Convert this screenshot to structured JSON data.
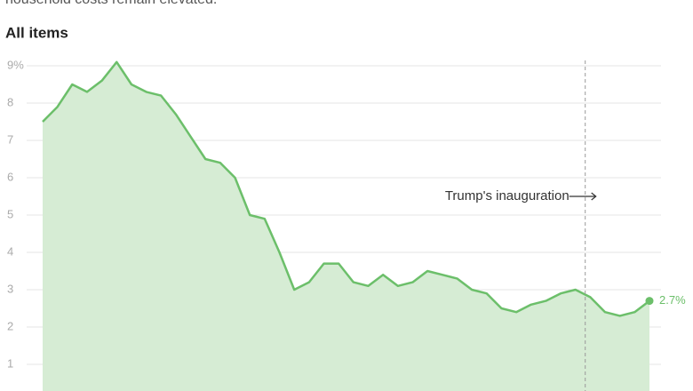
{
  "chart_data": {
    "type": "area",
    "subtitle": "household costs remain elevated.",
    "title": "All items",
    "categories": [
      null,
      null,
      null,
      null,
      null,
      null,
      null,
      null,
      null,
      null,
      null,
      null,
      null,
      null,
      null,
      null,
      null,
      null,
      null,
      null,
      null,
      null,
      null,
      null,
      null,
      null,
      null,
      null,
      null,
      null,
      null,
      null,
      null,
      null,
      null,
      null,
      null,
      null,
      null,
      null,
      null,
      null
    ],
    "values": [
      7.5,
      7.9,
      8.5,
      8.3,
      8.6,
      9.1,
      8.5,
      8.3,
      8.2,
      7.7,
      7.1,
      6.5,
      6.4,
      6.0,
      5.0,
      4.9,
      4.0,
      3.0,
      3.2,
      3.7,
      3.7,
      3.2,
      3.1,
      3.4,
      3.1,
      3.2,
      3.5,
      3.4,
      3.3,
      3.0,
      2.9,
      2.5,
      2.4,
      2.6,
      2.7,
      2.9,
      3.0,
      2.8,
      2.4,
      2.3,
      2.4,
      2.7
    ],
    "value_labels": [
      null,
      null,
      null,
      null,
      null,
      null,
      null,
      null,
      null,
      null,
      null,
      null,
      null,
      null,
      null,
      null,
      null,
      null,
      null,
      null,
      null,
      null,
      null,
      null,
      null,
      null,
      null,
      null,
      null,
      null,
      null,
      null,
      null,
      null,
      null,
      null,
      null,
      null,
      null,
      null,
      null,
      "2.7%"
    ],
    "color": "#6cbf6a",
    "fill": "#d6ecd4",
    "ylim": [
      0,
      9
    ],
    "yticks": [
      1,
      2,
      3,
      4,
      5,
      6,
      7,
      8,
      {
        "value": 9,
        "label": "9%"
      }
    ],
    "grid": true,
    "annotation": {
      "text": "Trump's inauguration",
      "category_index": 36
    }
  }
}
